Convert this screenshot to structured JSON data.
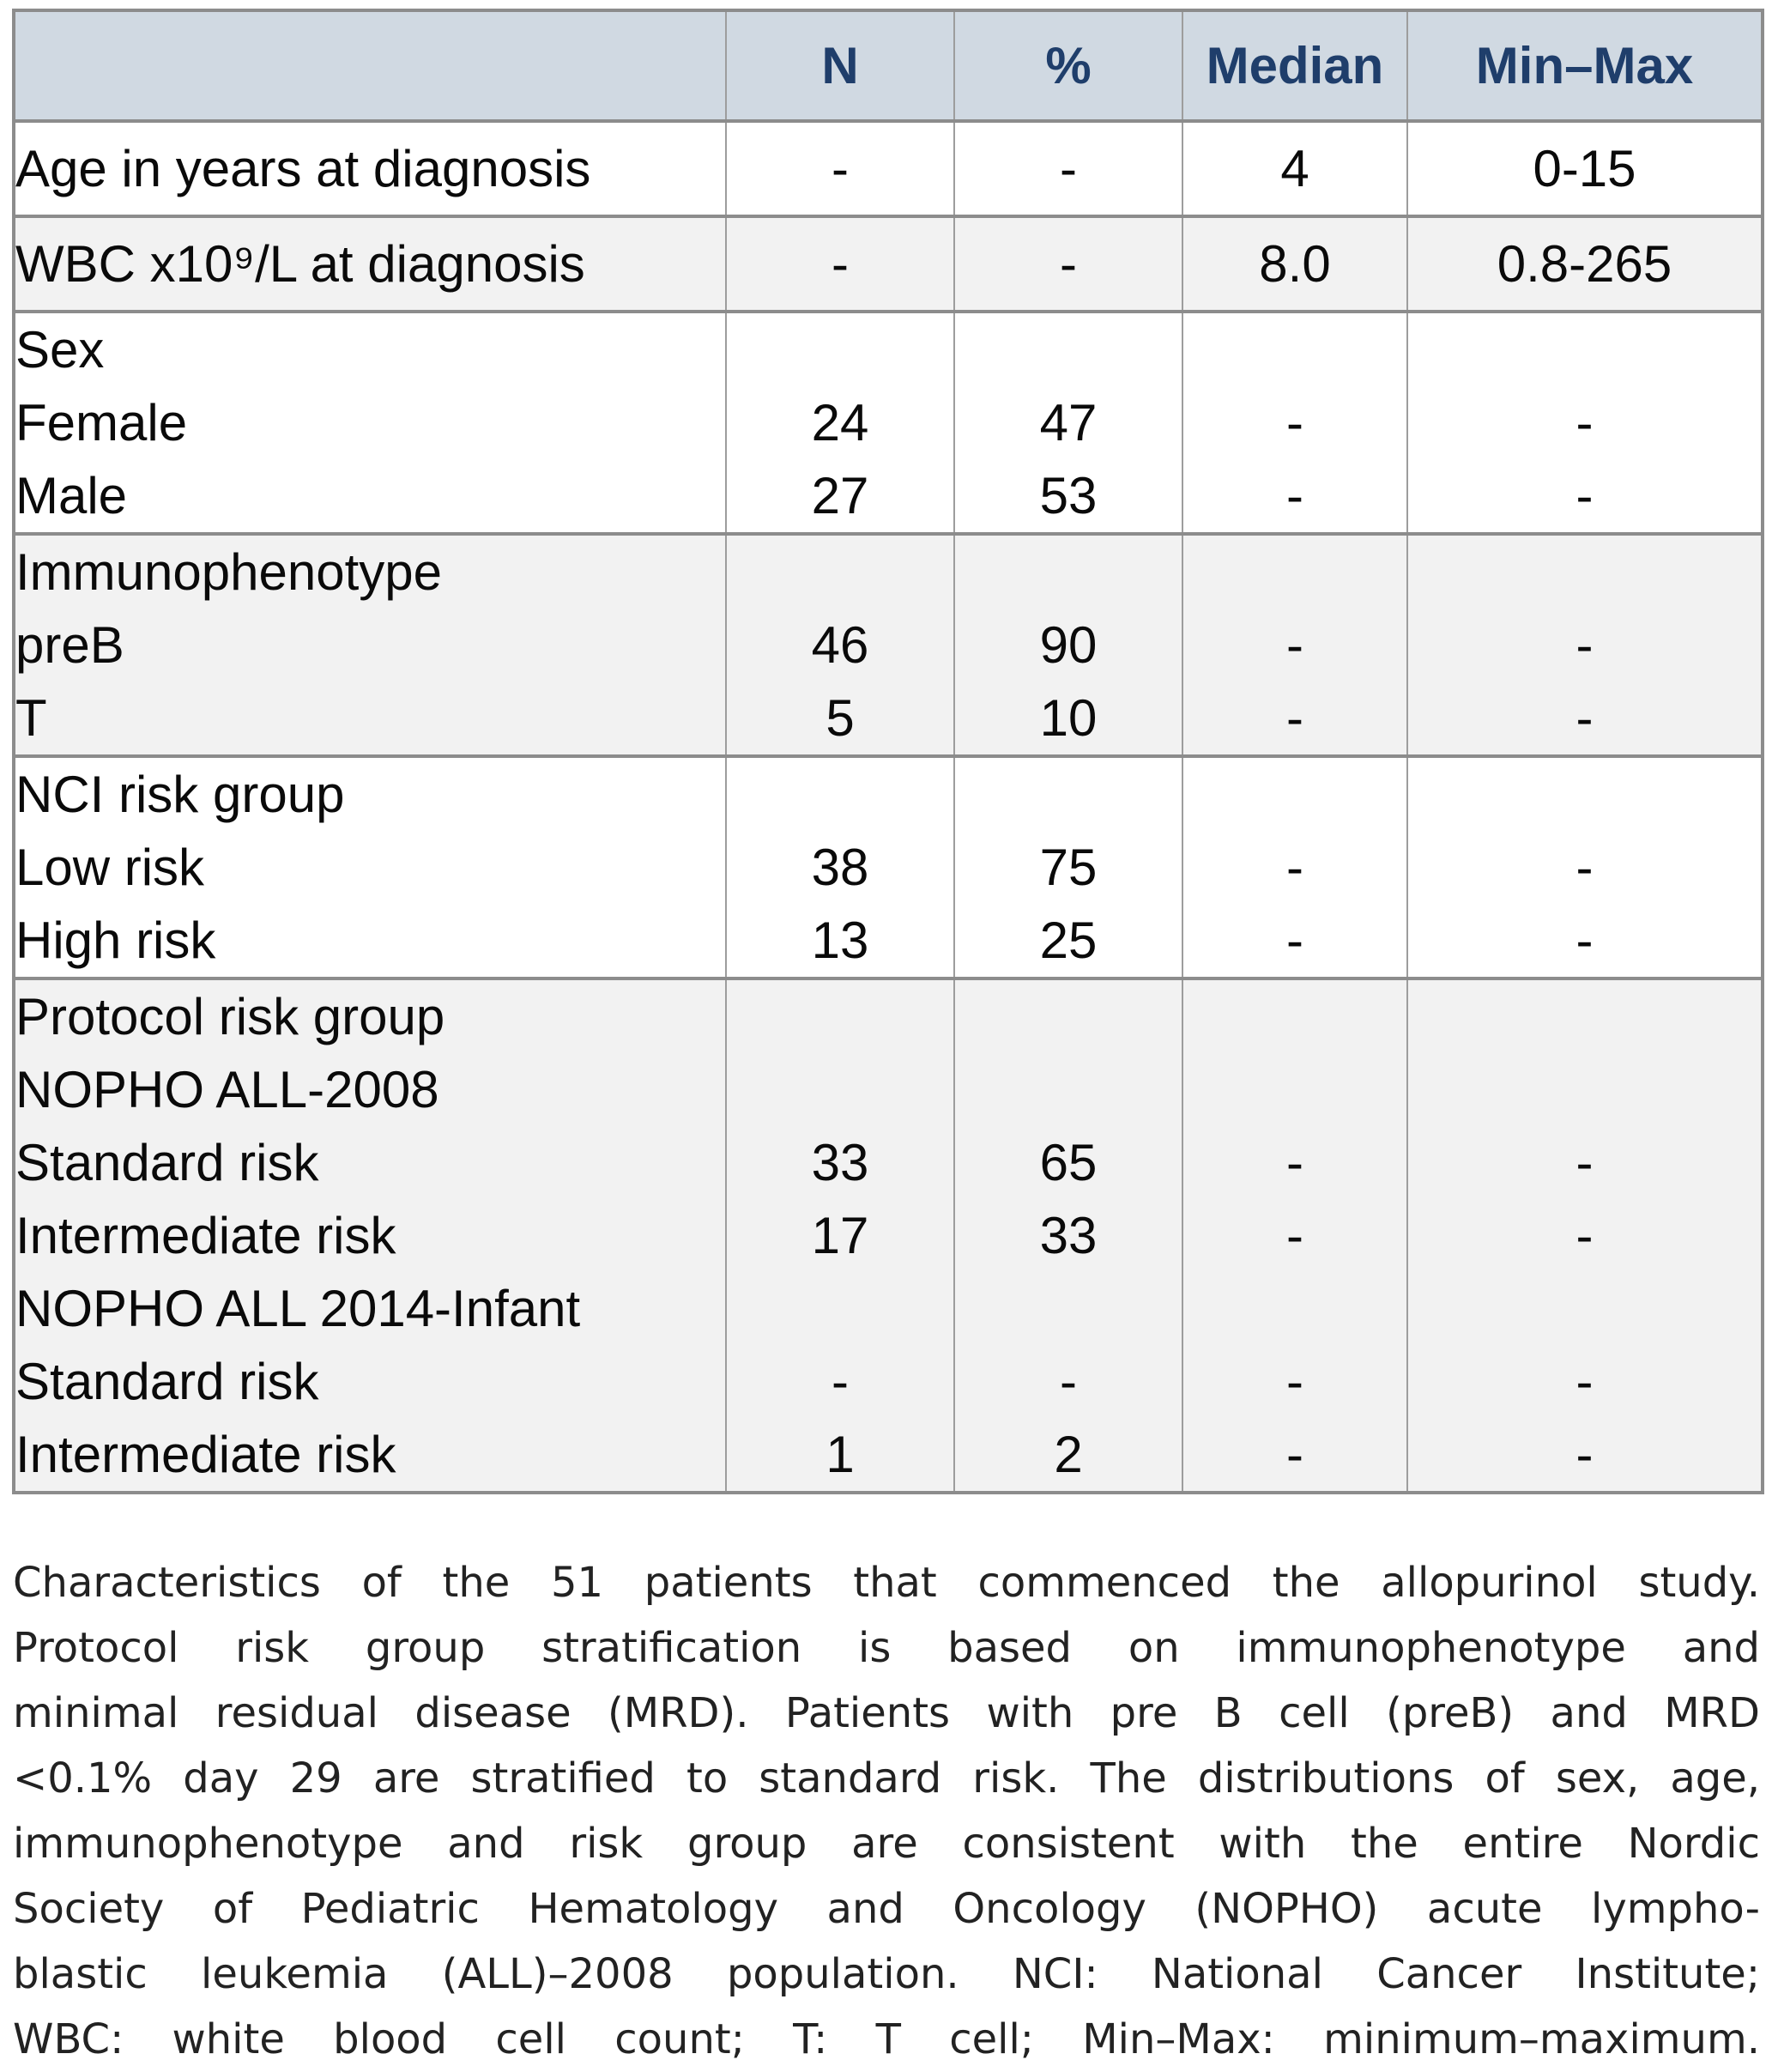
{
  "table": {
    "columns": [
      "",
      "N",
      "%",
      "Median",
      "Min–Max"
    ],
    "rows": [
      {
        "label": "Age in years at diagnosis",
        "indent": 0,
        "band": "white",
        "section_start": true,
        "single": true,
        "cells": [
          "-",
          "-",
          "4",
          "0-15"
        ]
      },
      {
        "label": "WBC x10⁹/L at diagnosis",
        "indent": 0,
        "band": "gray",
        "section_start": true,
        "single": true,
        "cells": [
          "-",
          "-",
          "8.0",
          "0.8-265"
        ]
      },
      {
        "label": "Sex",
        "indent": 0,
        "band": "white",
        "section_start": true,
        "single": false,
        "cells": [
          "",
          "",
          "",
          ""
        ]
      },
      {
        "label": "Female",
        "indent": 1,
        "band": "white",
        "section_start": false,
        "single": false,
        "cells": [
          "24",
          "47",
          "-",
          "-"
        ]
      },
      {
        "label": "Male",
        "indent": 1,
        "band": "white",
        "section_start": false,
        "single": false,
        "cells": [
          "27",
          "53",
          "-",
          "-"
        ]
      },
      {
        "label": "Immunophenotype",
        "indent": 0,
        "band": "gray",
        "section_start": true,
        "single": false,
        "cells": [
          "",
          "",
          "",
          ""
        ]
      },
      {
        "label": "preB",
        "indent": 1,
        "band": "gray",
        "section_start": false,
        "single": false,
        "cells": [
          "46",
          "90",
          "-",
          "-"
        ]
      },
      {
        "label": "T",
        "indent": 1,
        "band": "gray",
        "section_start": false,
        "single": false,
        "cells": [
          "5",
          "10",
          "-",
          "-"
        ]
      },
      {
        "label": "NCI risk group",
        "indent": 0,
        "band": "white",
        "section_start": true,
        "single": false,
        "cells": [
          "",
          "",
          "",
          ""
        ]
      },
      {
        "label": "Low risk",
        "indent": 1,
        "band": "white",
        "section_start": false,
        "single": false,
        "cells": [
          "38",
          "75",
          "-",
          "-"
        ]
      },
      {
        "label": "High risk",
        "indent": 1,
        "band": "white",
        "section_start": false,
        "single": false,
        "cells": [
          "13",
          "25",
          "-",
          "-"
        ]
      },
      {
        "label": "Protocol risk group",
        "indent": 0,
        "band": "gray",
        "section_start": true,
        "single": false,
        "cells": [
          "",
          "",
          "",
          ""
        ]
      },
      {
        "label": "NOPHO ALL-2008",
        "indent": 1,
        "band": "gray",
        "section_start": false,
        "single": false,
        "cells": [
          "",
          "",
          "",
          ""
        ]
      },
      {
        "label": "Standard risk",
        "indent": 2,
        "band": "gray",
        "section_start": false,
        "single": false,
        "cells": [
          "33",
          "65",
          "-",
          "-"
        ]
      },
      {
        "label": "Intermediate risk",
        "indent": 2,
        "band": "gray",
        "section_start": false,
        "single": false,
        "cells": [
          "17",
          "33",
          "-",
          "-"
        ]
      },
      {
        "label": "NOPHO ALL 2014-Infant",
        "indent": 1,
        "band": "gray",
        "section_start": false,
        "single": false,
        "cells": [
          "",
          "",
          "",
          ""
        ]
      },
      {
        "label": "Standard risk",
        "indent": 2,
        "band": "gray",
        "section_start": false,
        "single": false,
        "cells": [
          "-",
          "-",
          "-",
          "-"
        ]
      },
      {
        "label": "Intermediate risk",
        "indent": 2,
        "band": "gray",
        "section_start": false,
        "single": false,
        "cells": [
          "1",
          "2",
          "-",
          "-"
        ]
      }
    ]
  },
  "caption": {
    "lines": [
      "Characteristics of the 51 patients that commenced the allopurinol study.",
      "Protocol risk group stratification is based on immunophenotype and",
      "minimal residual disease (MRD). Patients with pre B cell (preB) and MRD",
      "<0.1% day 29 are stratified to standard risk. The distributions of sex, age,",
      "immunophenotype and risk group are consistent with the entire Nordic",
      "Society of Pediatric Hematology and Oncology (NOPHO) acute lympho-",
      "blastic leukemia (ALL)–2008 population. NCI: National Cancer Institute;",
      "WBC: white blood cell count; T: T cell; Min–Max: minimum–maximum."
    ]
  },
  "colors": {
    "header_background": "#d0d9e2",
    "header_text": "#1f3e6b",
    "section_band_gray": "#f2f2f2",
    "border_thick": "#8c8c8c",
    "border_thin": "#9d9d9d",
    "caption_text": "#222222"
  }
}
